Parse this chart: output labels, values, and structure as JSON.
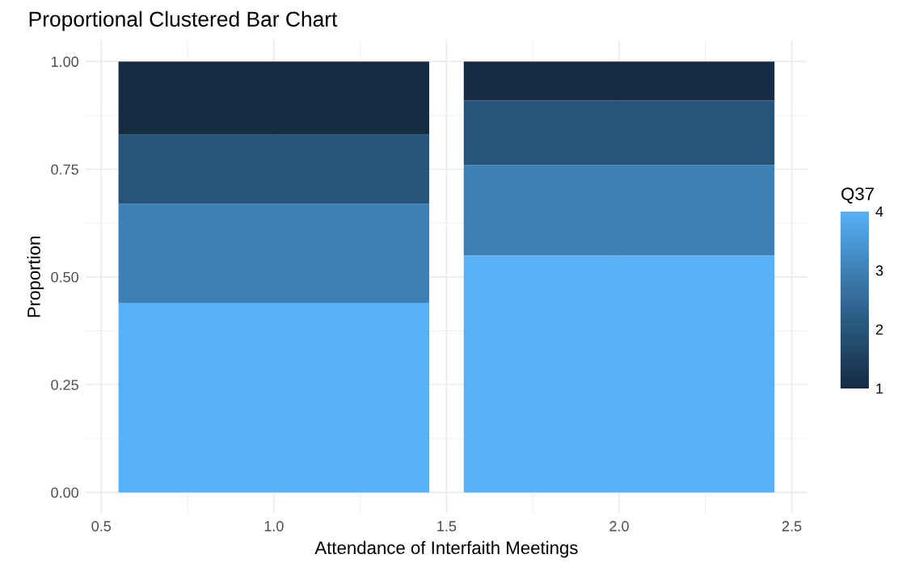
{
  "chart_data": {
    "type": "bar",
    "title": "Proportional Clustered Bar Chart",
    "xlabel": "Attendance of Interfaith Meetings",
    "ylabel": "Proportion",
    "x": [
      1,
      2
    ],
    "stacked": true,
    "series": [
      {
        "color": "#56b1f7",
        "values": [
          0.44,
          0.55
        ]
      },
      {
        "color": "#3e80b5",
        "values": [
          0.23,
          0.21
        ]
      },
      {
        "color": "#275579",
        "values": [
          0.16,
          0.15
        ]
      },
      {
        "color": "#162c45",
        "values": [
          0.17,
          0.09
        ]
      }
    ],
    "xlim": [
      0.455,
      2.545
    ],
    "xticks": [
      {
        "value": 0.5,
        "label": "0.5"
      },
      {
        "value": 1.0,
        "label": "1.0"
      },
      {
        "value": 1.5,
        "label": "1.5"
      },
      {
        "value": 2.0,
        "label": "2.0"
      },
      {
        "value": 2.5,
        "label": "2.5"
      }
    ],
    "ylim": [
      -0.05,
      1.05
    ],
    "yticks": [
      {
        "value": 0,
        "label": "0.00"
      },
      {
        "value": 0.25,
        "label": "0.25"
      },
      {
        "value": 0.5,
        "label": "0.50"
      },
      {
        "value": 0.75,
        "label": "0.75"
      },
      {
        "value": 1.0,
        "label": "1.00"
      }
    ],
    "clabel": "Q37",
    "clim": [
      1,
      4
    ],
    "cticks": [
      1,
      2,
      3,
      4
    ],
    "grid": true
  }
}
